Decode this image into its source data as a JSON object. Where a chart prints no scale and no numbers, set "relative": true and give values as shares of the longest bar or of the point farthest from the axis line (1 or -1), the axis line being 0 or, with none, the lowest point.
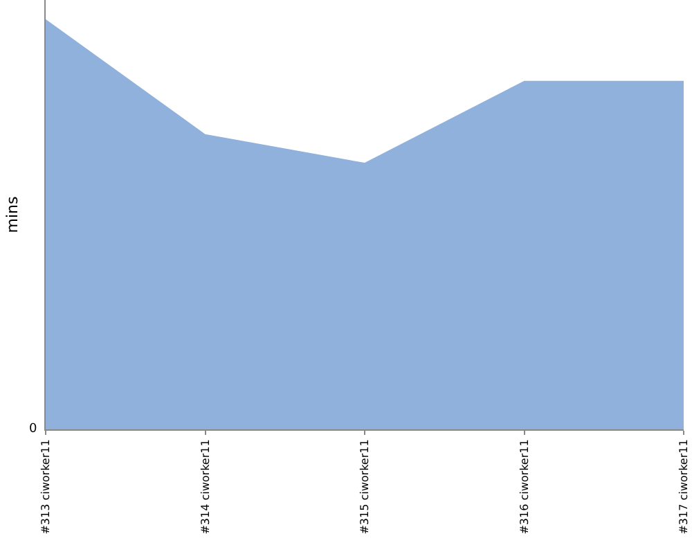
{
  "chart_data": {
    "type": "area",
    "ylabel": "mins",
    "relative": true,
    "categories": [
      "#313 ciworker11",
      "#314 ciworker11",
      "#315 ciworker11",
      "#316 ciworker11",
      "#317 ciworker11"
    ],
    "series": [
      {
        "color": "#8fb1db",
        "values": [
          1,
          0.72,
          0.65,
          0.85,
          0.85
        ]
      }
    ],
    "annotations": [
      "0"
    ],
    "grid": false
  }
}
